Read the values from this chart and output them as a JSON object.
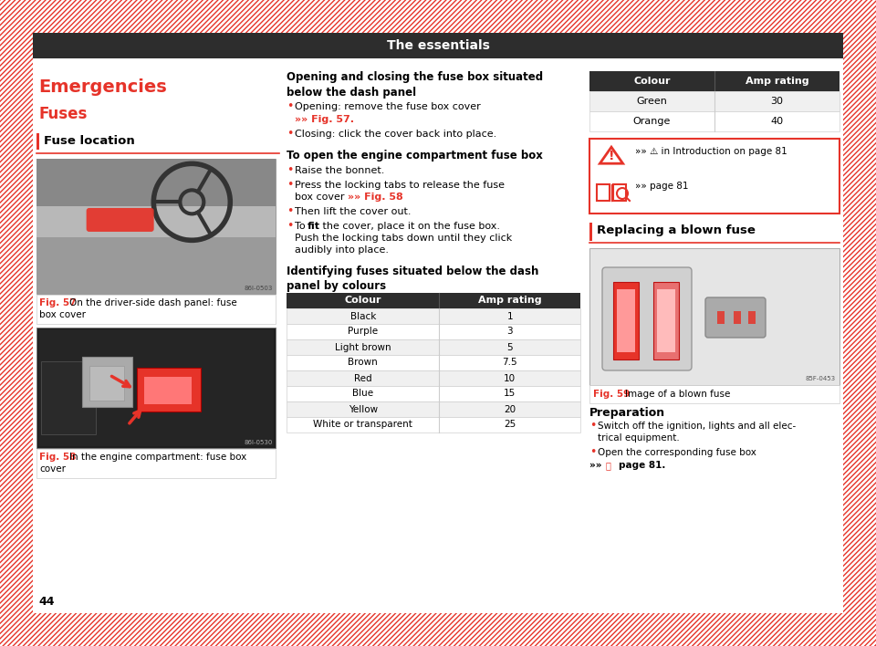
{
  "title": "The essentials",
  "title_bg": "#2d2d2d",
  "title_color": "#ffffff",
  "page_bg": "#ffffff",
  "section_heading": "Emergencies",
  "subsection_heading": "Fuses",
  "red_color": "#e63329",
  "fuse_location_heading": "Fuse location",
  "fig57_caption_bold": "Fig. 57",
  "fig57_caption_rest": "  On the driver-side dash panel: fuse\nbox cover",
  "fig58_caption_bold": "Fig. 58",
  "fig58_caption_rest": "  In the engine compartment: fuse box\ncover",
  "col_heading": "Opening and closing the fuse box situated\nbelow the dash panel",
  "bullet1_normal": "Opening: remove the fuse box cover",
  "bullet1_bold_ref": "»» Fig. 57.",
  "bullet2": "Closing: click the cover back into place.",
  "section2_heading": "To open the engine compartment fuse box",
  "b2_1": "Raise the bonnet.",
  "b2_2_pre": "Press the locking tabs to release the fuse\nbox cover ",
  "b2_2_ref": "»» Fig. 58",
  "b2_3": "Then lift the cover out.",
  "b2_4_pre": "To ",
  "b2_4_bold": "fit",
  "b2_4_rest": " the cover, place it on the fuse box.\nPush the locking tabs down until they click\naudibly into place.",
  "table_heading": "Identifying fuses situated below the dash\npanel by colours",
  "fuse_table_headers": [
    "Colour",
    "Amp rating"
  ],
  "fuse_table_rows": [
    [
      "Black",
      "1"
    ],
    [
      "Purple",
      "3"
    ],
    [
      "Light brown",
      "5"
    ],
    [
      "Brown",
      "7.5"
    ],
    [
      "Red",
      "10"
    ],
    [
      "Blue",
      "15"
    ],
    [
      "Yellow",
      "20"
    ],
    [
      "White or transparent",
      "25"
    ]
  ],
  "right_table_headers": [
    "Colour",
    "Amp rating"
  ],
  "right_table_rows": [
    [
      "Green",
      "30"
    ],
    [
      "Orange",
      "40"
    ]
  ],
  "warn_line1": "»» ⚠ in Introduction on page 81",
  "warn_line2": "»» page 81",
  "replacing_heading": "Replacing a blown fuse",
  "fig59_caption_bold": "Fig. 59",
  "fig59_caption_rest": "  Image of a blown fuse",
  "prep_heading": "Preparation",
  "prep_b1": "Switch off the ignition, lights and all elec-\ntrical equipment.",
  "prep_b2_pre": "Open the corresponding fuse box",
  "prep_b2_ref": "»» 📖 page 81.",
  "page_number": "44",
  "table_header_bg": "#2d2d2d",
  "table_row_alt": "#f0f0f0",
  "table_row_white": "#ffffff",
  "stripe_color": "#e63329"
}
